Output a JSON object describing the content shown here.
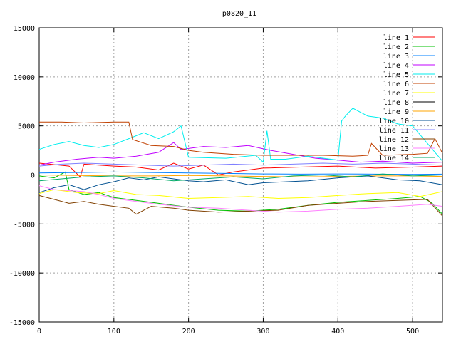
{
  "chart_data": {
    "type": "line",
    "title": "p0820_11",
    "xlabel": "",
    "ylabel": "",
    "xlim": [
      0,
      540
    ],
    "ylim": [
      -15000,
      15000
    ],
    "xticks": [
      0,
      100,
      200,
      300,
      400,
      500
    ],
    "yticks": [
      -15000,
      -10000,
      -5000,
      0,
      5000,
      10000,
      15000
    ],
    "grid": true,
    "legend_position": "top-right",
    "series": [
      {
        "name": "line 1",
        "color": "#ff0000",
        "points": [
          [
            0,
            1200
          ],
          [
            20,
            1050
          ],
          [
            40,
            900
          ],
          [
            55,
            -200
          ],
          [
            60,
            1100
          ],
          [
            100,
            900
          ],
          [
            130,
            800
          ],
          [
            160,
            500
          ],
          [
            180,
            1200
          ],
          [
            200,
            600
          ],
          [
            220,
            1000
          ],
          [
            240,
            0
          ],
          [
            260,
            300
          ],
          [
            300,
            700
          ],
          [
            350,
            800
          ],
          [
            400,
            900
          ],
          [
            450,
            700
          ],
          [
            500,
            800
          ],
          [
            540,
            900
          ]
        ]
      },
      {
        "name": "line 2",
        "color": "#00c000",
        "points": [
          [
            0,
            -100
          ],
          [
            20,
            -300
          ],
          [
            35,
            300
          ],
          [
            40,
            -1500
          ],
          [
            60,
            -2000
          ],
          [
            80,
            -1800
          ],
          [
            100,
            -2300
          ],
          [
            130,
            -2600
          ],
          [
            160,
            -2900
          ],
          [
            200,
            -3300
          ],
          [
            240,
            -3600
          ],
          [
            280,
            -3700
          ],
          [
            320,
            -3500
          ],
          [
            360,
            -3100
          ],
          [
            400,
            -2800
          ],
          [
            440,
            -2600
          ],
          [
            480,
            -2400
          ],
          [
            510,
            -2200
          ],
          [
            525,
            -2800
          ],
          [
            540,
            -4000
          ]
        ]
      },
      {
        "name": "line 3",
        "color": "#0080ff",
        "points": [
          [
            0,
            200
          ],
          [
            50,
            250
          ],
          [
            100,
            300
          ],
          [
            150,
            250
          ],
          [
            200,
            200
          ],
          [
            250,
            150
          ],
          [
            300,
            100
          ],
          [
            350,
            80
          ],
          [
            400,
            100
          ],
          [
            450,
            80
          ],
          [
            500,
            50
          ],
          [
            540,
            80
          ]
        ]
      },
      {
        "name": "line 4",
        "color": "#c000ff",
        "points": [
          [
            0,
            1000
          ],
          [
            20,
            1300
          ],
          [
            50,
            1600
          ],
          [
            80,
            1800
          ],
          [
            100,
            1700
          ],
          [
            130,
            1900
          ],
          [
            160,
            2300
          ],
          [
            180,
            3300
          ],
          [
            190,
            2600
          ],
          [
            220,
            2900
          ],
          [
            250,
            2800
          ],
          [
            280,
            3000
          ],
          [
            310,
            2500
          ],
          [
            340,
            2100
          ],
          [
            370,
            1700
          ],
          [
            400,
            1500
          ],
          [
            430,
            1300
          ],
          [
            460,
            1400
          ],
          [
            500,
            1200
          ],
          [
            540,
            1300
          ]
        ]
      },
      {
        "name": "line 5",
        "color": "#00eeee",
        "points": [
          [
            0,
            2600
          ],
          [
            20,
            3100
          ],
          [
            40,
            3400
          ],
          [
            60,
            3000
          ],
          [
            80,
            2800
          ],
          [
            100,
            3100
          ],
          [
            120,
            3700
          ],
          [
            140,
            4300
          ],
          [
            160,
            3700
          ],
          [
            180,
            4400
          ],
          [
            190,
            5000
          ],
          [
            200,
            1800
          ],
          [
            250,
            1700
          ],
          [
            290,
            2000
          ],
          [
            300,
            1300
          ],
          [
            305,
            4500
          ],
          [
            310,
            1600
          ],
          [
            330,
            1600
          ],
          [
            360,
            1900
          ],
          [
            400,
            1500
          ],
          [
            405,
            5500
          ],
          [
            410,
            6000
          ],
          [
            420,
            6800
          ],
          [
            440,
            6000
          ],
          [
            460,
            5800
          ],
          [
            480,
            5200
          ],
          [
            500,
            5000
          ],
          [
            540,
            1400
          ]
        ]
      },
      {
        "name": "line 6",
        "color": "#c04000",
        "points": [
          [
            0,
            5400
          ],
          [
            30,
            5400
          ],
          [
            60,
            5300
          ],
          [
            100,
            5400
          ],
          [
            120,
            5400
          ],
          [
            125,
            3600
          ],
          [
            150,
            3000
          ],
          [
            180,
            2900
          ],
          [
            200,
            2500
          ],
          [
            220,
            2300
          ],
          [
            260,
            2100
          ],
          [
            300,
            2000
          ],
          [
            340,
            2000
          ],
          [
            380,
            2000
          ],
          [
            420,
            1900
          ],
          [
            440,
            2000
          ],
          [
            445,
            3200
          ],
          [
            460,
            2000
          ],
          [
            500,
            2100
          ],
          [
            520,
            2200
          ],
          [
            530,
            3700
          ],
          [
            540,
            2200
          ]
        ]
      },
      {
        "name": "line 7",
        "color": "#ffff00",
        "points": [
          [
            0,
            -1900
          ],
          [
            20,
            -1500
          ],
          [
            50,
            -1800
          ],
          [
            80,
            -1900
          ],
          [
            100,
            -1600
          ],
          [
            130,
            -2000
          ],
          [
            160,
            -2100
          ],
          [
            200,
            -2400
          ],
          [
            240,
            -2300
          ],
          [
            280,
            -2200
          ],
          [
            320,
            -2400
          ],
          [
            360,
            -2300
          ],
          [
            400,
            -2100
          ],
          [
            440,
            -1900
          ],
          [
            480,
            -1800
          ],
          [
            510,
            -2200
          ],
          [
            540,
            -1700
          ]
        ]
      },
      {
        "name": "line 8",
        "color": "#000000",
        "points": [
          [
            0,
            0
          ],
          [
            50,
            0
          ],
          [
            100,
            0
          ],
          [
            150,
            0
          ],
          [
            200,
            0
          ],
          [
            250,
            0
          ],
          [
            300,
            0
          ],
          [
            350,
            0
          ],
          [
            400,
            0
          ],
          [
            450,
            0
          ],
          [
            500,
            0
          ],
          [
            540,
            0
          ]
        ]
      },
      {
        "name": "line 9",
        "color": "#ffa500",
        "points": [
          [
            0,
            0
          ],
          [
            50,
            -50
          ],
          [
            100,
            -100
          ],
          [
            150,
            -100
          ],
          [
            200,
            -50
          ],
          [
            250,
            -100
          ],
          [
            300,
            -150
          ],
          [
            350,
            -200
          ],
          [
            400,
            -150
          ],
          [
            450,
            -100
          ],
          [
            500,
            -100
          ],
          [
            540,
            -150
          ]
        ]
      },
      {
        "name": "line 10",
        "color": "#005090",
        "points": [
          [
            0,
            -1800
          ],
          [
            20,
            -1300
          ],
          [
            40,
            -1000
          ],
          [
            60,
            -1500
          ],
          [
            80,
            -1000
          ],
          [
            100,
            -700
          ],
          [
            120,
            -300
          ],
          [
            140,
            -500
          ],
          [
            160,
            -200
          ],
          [
            180,
            -400
          ],
          [
            200,
            -600
          ],
          [
            220,
            -700
          ],
          [
            250,
            -500
          ],
          [
            280,
            -1000
          ],
          [
            300,
            -800
          ],
          [
            330,
            -700
          ],
          [
            360,
            -600
          ],
          [
            400,
            -300
          ],
          [
            440,
            -100
          ],
          [
            480,
            -500
          ],
          [
            510,
            -600
          ],
          [
            540,
            -1000
          ]
        ]
      },
      {
        "name": "line 11",
        "color": "#8080ff",
        "points": [
          [
            0,
            900
          ],
          [
            30,
            1100
          ],
          [
            60,
            1200
          ],
          [
            100,
            1100
          ],
          [
            140,
            1000
          ],
          [
            180,
            900
          ],
          [
            220,
            1000
          ],
          [
            260,
            1100
          ],
          [
            300,
            1000
          ],
          [
            340,
            1100
          ],
          [
            380,
            1200
          ],
          [
            420,
            1100
          ],
          [
            460,
            1200
          ],
          [
            500,
            1100
          ],
          [
            540,
            1000
          ]
        ]
      },
      {
        "name": "line 12",
        "color": "#804000",
        "points": [
          [
            0,
            -2100
          ],
          [
            20,
            -2500
          ],
          [
            40,
            -2900
          ],
          [
            60,
            -2700
          ],
          [
            80,
            -3000
          ],
          [
            100,
            -3200
          ],
          [
            120,
            -3400
          ],
          [
            130,
            -4000
          ],
          [
            150,
            -3200
          ],
          [
            180,
            -3400
          ],
          [
            200,
            -3600
          ],
          [
            240,
            -3800
          ],
          [
            280,
            -3700
          ],
          [
            320,
            -3600
          ],
          [
            360,
            -3100
          ],
          [
            400,
            -2900
          ],
          [
            440,
            -2700
          ],
          [
            480,
            -2600
          ],
          [
            520,
            -2500
          ],
          [
            540,
            -4200
          ]
        ]
      },
      {
        "name": "line 13",
        "color": "#ff80ff",
        "points": [
          [
            0,
            -1100
          ],
          [
            20,
            -1500
          ],
          [
            40,
            -1600
          ],
          [
            60,
            -1700
          ],
          [
            80,
            -2000
          ],
          [
            100,
            -2400
          ],
          [
            130,
            -2700
          ],
          [
            160,
            -3000
          ],
          [
            200,
            -3300
          ],
          [
            240,
            -3400
          ],
          [
            280,
            -3600
          ],
          [
            320,
            -3800
          ],
          [
            360,
            -3700
          ],
          [
            400,
            -3500
          ],
          [
            440,
            -3400
          ],
          [
            480,
            -3200
          ],
          [
            520,
            -3000
          ],
          [
            540,
            -3200
          ]
        ]
      },
      {
        "name": "line 14",
        "color": "#00aa66",
        "points": [
          [
            0,
            -600
          ],
          [
            30,
            -400
          ],
          [
            60,
            -200
          ],
          [
            100,
            -100
          ],
          [
            140,
            -300
          ],
          [
            180,
            -600
          ],
          [
            220,
            -400
          ],
          [
            260,
            -200
          ],
          [
            300,
            -400
          ],
          [
            340,
            -100
          ],
          [
            380,
            0
          ],
          [
            420,
            -200
          ],
          [
            460,
            100
          ],
          [
            500,
            -100
          ],
          [
            540,
            0
          ]
        ]
      }
    ]
  }
}
